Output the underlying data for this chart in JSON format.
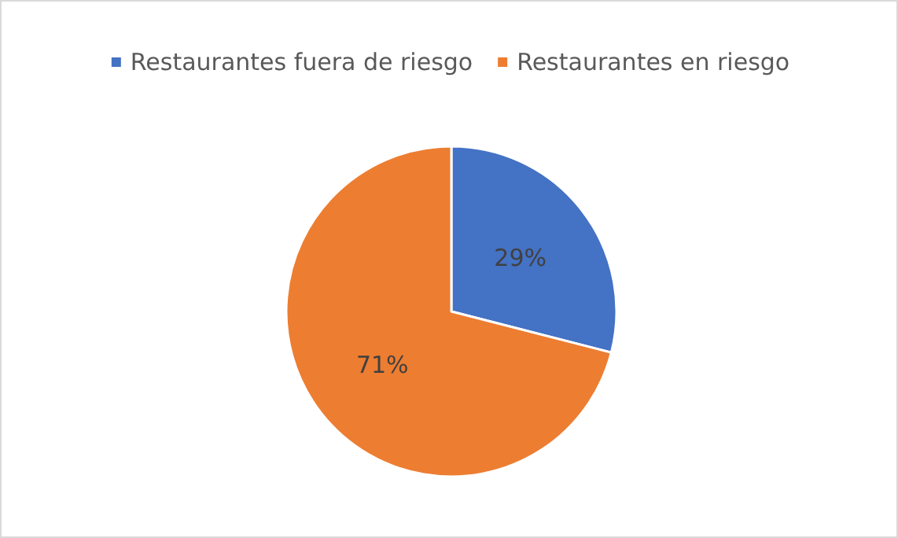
{
  "chart_data": {
    "type": "pie",
    "categories": [
      "Restaurantes fuera de riesgo",
      "Restaurantes en riesgo"
    ],
    "values": [
      29,
      71
    ],
    "colors": [
      "#4472c4",
      "#ed7d31"
    ],
    "value_labels": [
      "29%",
      "71%"
    ],
    "legend": "top"
  }
}
